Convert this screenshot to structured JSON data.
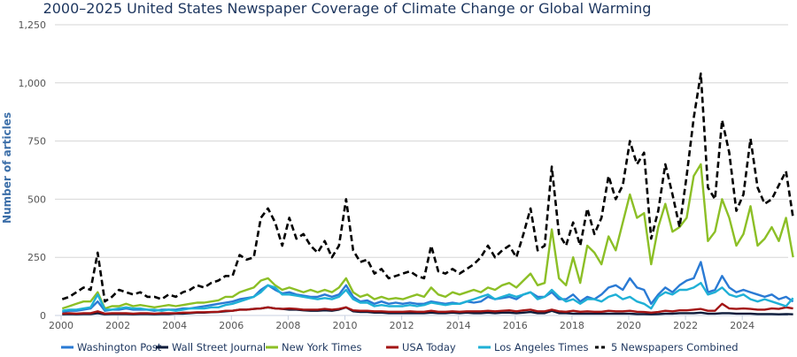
{
  "chart_data": {
    "type": "line",
    "title": "2000–2025 United States Newspaper Coverage of Climate Change or Global Warming",
    "xlabel": "",
    "ylabel": "Number of articles",
    "ylim": [
      0,
      1250
    ],
    "yticks": [
      "0",
      "250",
      "500",
      "750",
      "1,000",
      "1,250"
    ],
    "ytick_values": [
      0,
      250,
      500,
      750,
      1000,
      1250
    ],
    "xlim": [
      2000,
      2025.6
    ],
    "xticks": [
      "2000",
      "2002",
      "2004",
      "2006",
      "2008",
      "2010",
      "2012",
      "2014",
      "2016",
      "2018",
      "2020",
      "2022",
      "2024"
    ],
    "grid": true,
    "legend_position": "bottom",
    "x_start": "2000 Q1",
    "x_step": "quarter",
    "series": [
      {
        "name": "Washington Post",
        "color": "#2a7ad4",
        "dashed": false,
        "values": [
          15,
          20,
          20,
          25,
          30,
          60,
          20,
          25,
          25,
          30,
          25,
          25,
          25,
          20,
          25,
          25,
          25,
          30,
          30,
          35,
          40,
          45,
          50,
          55,
          60,
          70,
          75,
          80,
          110,
          130,
          110,
          95,
          100,
          90,
          85,
          80,
          80,
          90,
          80,
          90,
          130,
          80,
          60,
          65,
          50,
          60,
          50,
          55,
          50,
          55,
          50,
          50,
          60,
          55,
          50,
          55,
          50,
          60,
          55,
          60,
          80,
          70,
          75,
          80,
          70,
          90,
          100,
          80,
          80,
          100,
          70,
          70,
          90,
          60,
          80,
          70,
          90,
          120,
          130,
          110,
          160,
          120,
          110,
          50,
          90,
          120,
          100,
          130,
          150,
          160,
          230,
          100,
          110,
          170,
          120,
          100,
          110,
          100,
          90,
          80,
          90,
          70,
          80,
          60
        ]
      },
      {
        "name": "Wall Street Journal",
        "color": "#0d1b3a",
        "dashed": false,
        "values": [
          5,
          6,
          5,
          6,
          6,
          10,
          5,
          6,
          6,
          6,
          5,
          6,
          6,
          5,
          6,
          6,
          8,
          8,
          10,
          12,
          12,
          14,
          15,
          18,
          20,
          25,
          25,
          28,
          30,
          35,
          30,
          28,
          25,
          25,
          22,
          20,
          20,
          22,
          20,
          25,
          35,
          18,
          15,
          15,
          12,
          12,
          10,
          10,
          10,
          10,
          10,
          10,
          12,
          10,
          10,
          12,
          10,
          12,
          10,
          10,
          12,
          10,
          12,
          12,
          10,
          12,
          15,
          10,
          10,
          20,
          10,
          10,
          8,
          8,
          8,
          8,
          8,
          8,
          8,
          8,
          8,
          6,
          6,
          5,
          6,
          8,
          8,
          10,
          10,
          10,
          12,
          8,
          8,
          10,
          10,
          8,
          8,
          8,
          6,
          6,
          6,
          5,
          6,
          5
        ]
      },
      {
        "name": "New York Times",
        "color": "#8cbf26",
        "dashed": false,
        "values": [
          30,
          40,
          50,
          60,
          60,
          100,
          30,
          40,
          40,
          50,
          40,
          45,
          40,
          35,
          40,
          45,
          40,
          45,
          50,
          55,
          55,
          60,
          65,
          80,
          80,
          100,
          110,
          120,
          150,
          160,
          130,
          110,
          120,
          110,
          100,
          110,
          100,
          110,
          100,
          120,
          160,
          100,
          80,
          90,
          70,
          80,
          70,
          75,
          70,
          80,
          90,
          80,
          120,
          90,
          80,
          100,
          90,
          100,
          110,
          100,
          120,
          110,
          130,
          140,
          120,
          150,
          180,
          130,
          140,
          370,
          160,
          130,
          250,
          140,
          300,
          270,
          220,
          340,
          280,
          400,
          520,
          420,
          440,
          220,
          380,
          480,
          360,
          380,
          420,
          600,
          650,
          320,
          360,
          500,
          420,
          300,
          350,
          470,
          300,
          330,
          380,
          320,
          420,
          250
        ]
      },
      {
        "name": "USA Today",
        "color": "#a31515",
        "dashed": false,
        "values": [
          8,
          10,
          8,
          10,
          10,
          18,
          8,
          10,
          10,
          10,
          8,
          10,
          10,
          8,
          10,
          10,
          10,
          12,
          12,
          14,
          14,
          15,
          16,
          20,
          20,
          25,
          25,
          28,
          30,
          35,
          30,
          28,
          30,
          28,
          25,
          25,
          25,
          28,
          25,
          28,
          35,
          22,
          20,
          20,
          18,
          18,
          16,
          16,
          16,
          18,
          16,
          16,
          20,
          16,
          16,
          18,
          16,
          18,
          18,
          18,
          20,
          18,
          20,
          22,
          18,
          22,
          25,
          18,
          18,
          25,
          18,
          16,
          20,
          16,
          18,
          16,
          16,
          20,
          18,
          18,
          20,
          16,
          15,
          12,
          15,
          20,
          18,
          22,
          22,
          25,
          28,
          20,
          20,
          50,
          30,
          28,
          30,
          28,
          25,
          25,
          30,
          28,
          35,
          30
        ]
      },
      {
        "name": "Los Angeles Times",
        "color": "#1fb0d6",
        "dashed": false,
        "values": [
          20,
          25,
          25,
          30,
          35,
          90,
          25,
          25,
          30,
          35,
          30,
          30,
          25,
          25,
          20,
          25,
          20,
          25,
          30,
          30,
          30,
          35,
          35,
          45,
          50,
          60,
          70,
          80,
          100,
          130,
          120,
          90,
          90,
          85,
          80,
          75,
          70,
          75,
          70,
          80,
          110,
          70,
          55,
          55,
          40,
          45,
          40,
          40,
          40,
          45,
          40,
          45,
          55,
          50,
          45,
          50,
          50,
          60,
          70,
          80,
          90,
          70,
          80,
          90,
          80,
          90,
          100,
          70,
          80,
          110,
          80,
          60,
          70,
          50,
          70,
          70,
          60,
          80,
          90,
          70,
          80,
          60,
          50,
          30,
          80,
          100,
          90,
          110,
          110,
          120,
          140,
          90,
          100,
          120,
          90,
          80,
          90,
          70,
          60,
          70,
          60,
          50,
          40,
          75
        ]
      },
      {
        "name": "5 Newspapers Combined",
        "color": "#000000",
        "dashed": true,
        "values": [
          70,
          80,
          100,
          120,
          110,
          270,
          60,
          80,
          110,
          100,
          90,
          100,
          80,
          80,
          70,
          90,
          80,
          100,
          110,
          130,
          120,
          140,
          150,
          170,
          170,
          260,
          240,
          250,
          420,
          460,
          400,
          300,
          420,
          330,
          350,
          300,
          270,
          320,
          250,
          300,
          500,
          280,
          230,
          240,
          180,
          200,
          160,
          170,
          180,
          190,
          170,
          160,
          300,
          190,
          180,
          200,
          180,
          200,
          220,
          250,
          300,
          250,
          280,
          300,
          250,
          350,
          460,
          280,
          300,
          640,
          350,
          300,
          400,
          300,
          460,
          350,
          420,
          600,
          500,
          560,
          750,
          650,
          700,
          330,
          450,
          650,
          520,
          380,
          600,
          850,
          1040,
          550,
          500,
          840,
          700,
          450,
          520,
          760,
          550,
          480,
          500,
          560,
          620,
          420
        ]
      }
    ]
  }
}
